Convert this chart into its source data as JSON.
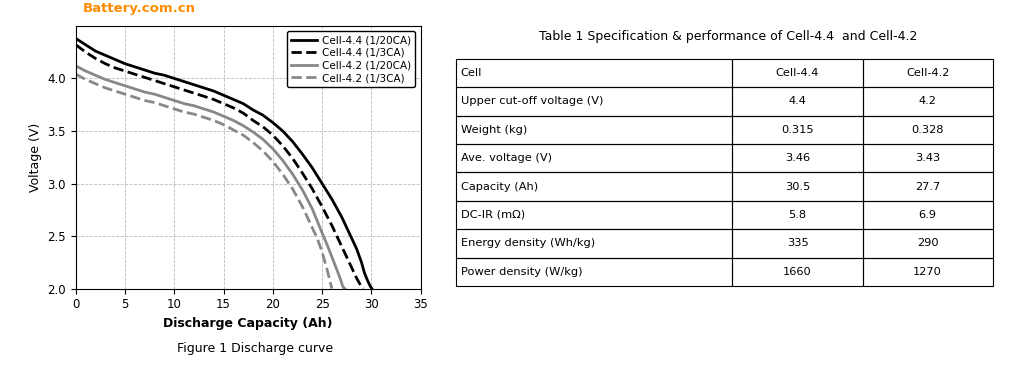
{
  "watermark_text": "Battery.com.cn",
  "watermark_color": "#FF8C00",
  "fig_caption": "Figure 1 Discharge curve",
  "table_title": "Table 1 Specification & performance of Cell-4.4  and Cell-4.2",
  "table_headers": [
    "Cell",
    "Cell-4.4",
    "Cell-4.2"
  ],
  "table_rows": [
    [
      "Upper cut-off voltage (V)",
      "4.4",
      "4.2"
    ],
    [
      "Weight (kg)",
      "0.315",
      "0.328"
    ],
    [
      "Ave. voltage (V)",
      "3.46",
      "3.43"
    ],
    [
      "Capacity (Ah)",
      "30.5",
      "27.7"
    ],
    [
      "DC-IR (mΩ)",
      "5.8",
      "6.9"
    ],
    [
      "Energy density (Wh/kg)",
      "335",
      "290"
    ],
    [
      "Power density (W/kg)",
      "1660",
      "1270"
    ]
  ],
  "xlim": [
    0,
    35
  ],
  "ylim": [
    2.0,
    4.5
  ],
  "xticks": [
    0,
    5,
    10,
    15,
    20,
    25,
    30,
    35
  ],
  "yticks": [
    2.0,
    2.5,
    3.0,
    3.5,
    4.0
  ],
  "xlabel": "Discharge Capacity (Ah)",
  "ylabel": "Voltage (V)",
  "legend_entries": [
    {
      "label": "Cell-4.4 (1/20CA)",
      "color": "#000000",
      "linestyle": "solid",
      "linewidth": 2.0
    },
    {
      "label": "Cell-4.4 (1/3CA)",
      "color": "#000000",
      "linestyle": "dashed",
      "linewidth": 2.0
    },
    {
      "label": "Cell-4.2 (1/20CA)",
      "color": "#888888",
      "linestyle": "solid",
      "linewidth": 2.0
    },
    {
      "label": "Cell-4.2 (1/3CA)",
      "color": "#888888",
      "linestyle": "dashed",
      "linewidth": 2.0
    }
  ],
  "curves": {
    "cell44_1_20": {
      "color": "#000000",
      "linestyle": "solid",
      "linewidth": 2.0,
      "x": [
        0,
        1,
        2,
        3,
        4,
        5,
        6,
        7,
        8,
        9,
        10,
        11,
        12,
        13,
        14,
        15,
        16,
        17,
        18,
        19,
        20,
        21,
        22,
        23,
        24,
        25,
        26,
        27,
        28,
        28.5,
        29,
        29.3,
        29.6,
        29.85,
        30.05
      ],
      "y": [
        4.38,
        4.32,
        4.26,
        4.22,
        4.18,
        4.14,
        4.11,
        4.08,
        4.05,
        4.03,
        4.0,
        3.97,
        3.94,
        3.91,
        3.88,
        3.84,
        3.8,
        3.76,
        3.7,
        3.65,
        3.58,
        3.5,
        3.4,
        3.28,
        3.15,
        3.0,
        2.85,
        2.68,
        2.48,
        2.38,
        2.25,
        2.15,
        2.08,
        2.03,
        2.0
      ]
    },
    "cell44_1_3": {
      "color": "#000000",
      "linestyle": "dashed",
      "linewidth": 2.0,
      "x": [
        0,
        1,
        2,
        3,
        4,
        5,
        6,
        7,
        8,
        9,
        10,
        11,
        12,
        13,
        14,
        15,
        16,
        17,
        18,
        19,
        20,
        21,
        22,
        23,
        24,
        25,
        26,
        27,
        27.5,
        28,
        28.5,
        28.8,
        29.0,
        29.2
      ],
      "y": [
        4.32,
        4.25,
        4.19,
        4.14,
        4.1,
        4.07,
        4.04,
        4.01,
        3.98,
        3.95,
        3.92,
        3.89,
        3.86,
        3.83,
        3.8,
        3.76,
        3.72,
        3.67,
        3.6,
        3.54,
        3.46,
        3.36,
        3.24,
        3.1,
        2.95,
        2.78,
        2.6,
        2.4,
        2.3,
        2.2,
        2.1,
        2.05,
        2.02,
        2.0
      ]
    },
    "cell42_1_20": {
      "color": "#888888",
      "linestyle": "solid",
      "linewidth": 2.0,
      "x": [
        0,
        1,
        2,
        3,
        4,
        5,
        6,
        7,
        8,
        9,
        10,
        11,
        12,
        13,
        14,
        15,
        16,
        17,
        18,
        19,
        20,
        21,
        22,
        23,
        24,
        25,
        25.5,
        26,
        26.5,
        26.9,
        27.1,
        27.3
      ],
      "y": [
        4.12,
        4.07,
        4.03,
        3.99,
        3.96,
        3.93,
        3.9,
        3.87,
        3.85,
        3.82,
        3.79,
        3.76,
        3.74,
        3.71,
        3.68,
        3.64,
        3.6,
        3.55,
        3.49,
        3.42,
        3.33,
        3.22,
        3.09,
        2.94,
        2.76,
        2.53,
        2.42,
        2.3,
        2.18,
        2.08,
        2.02,
        2.0
      ]
    },
    "cell42_1_3": {
      "color": "#888888",
      "linestyle": "dashed",
      "linewidth": 2.0,
      "x": [
        0,
        1,
        2,
        3,
        4,
        5,
        6,
        7,
        8,
        9,
        10,
        11,
        12,
        13,
        14,
        15,
        16,
        17,
        18,
        19,
        20,
        21,
        22,
        23,
        24,
        24.5,
        25,
        25.3,
        25.6,
        25.8,
        26.0
      ],
      "y": [
        4.04,
        3.99,
        3.95,
        3.91,
        3.88,
        3.85,
        3.82,
        3.79,
        3.77,
        3.74,
        3.71,
        3.68,
        3.66,
        3.63,
        3.6,
        3.56,
        3.51,
        3.46,
        3.39,
        3.31,
        3.21,
        3.09,
        2.95,
        2.78,
        2.58,
        2.48,
        2.35,
        2.25,
        2.15,
        2.07,
        2.0
      ]
    }
  }
}
